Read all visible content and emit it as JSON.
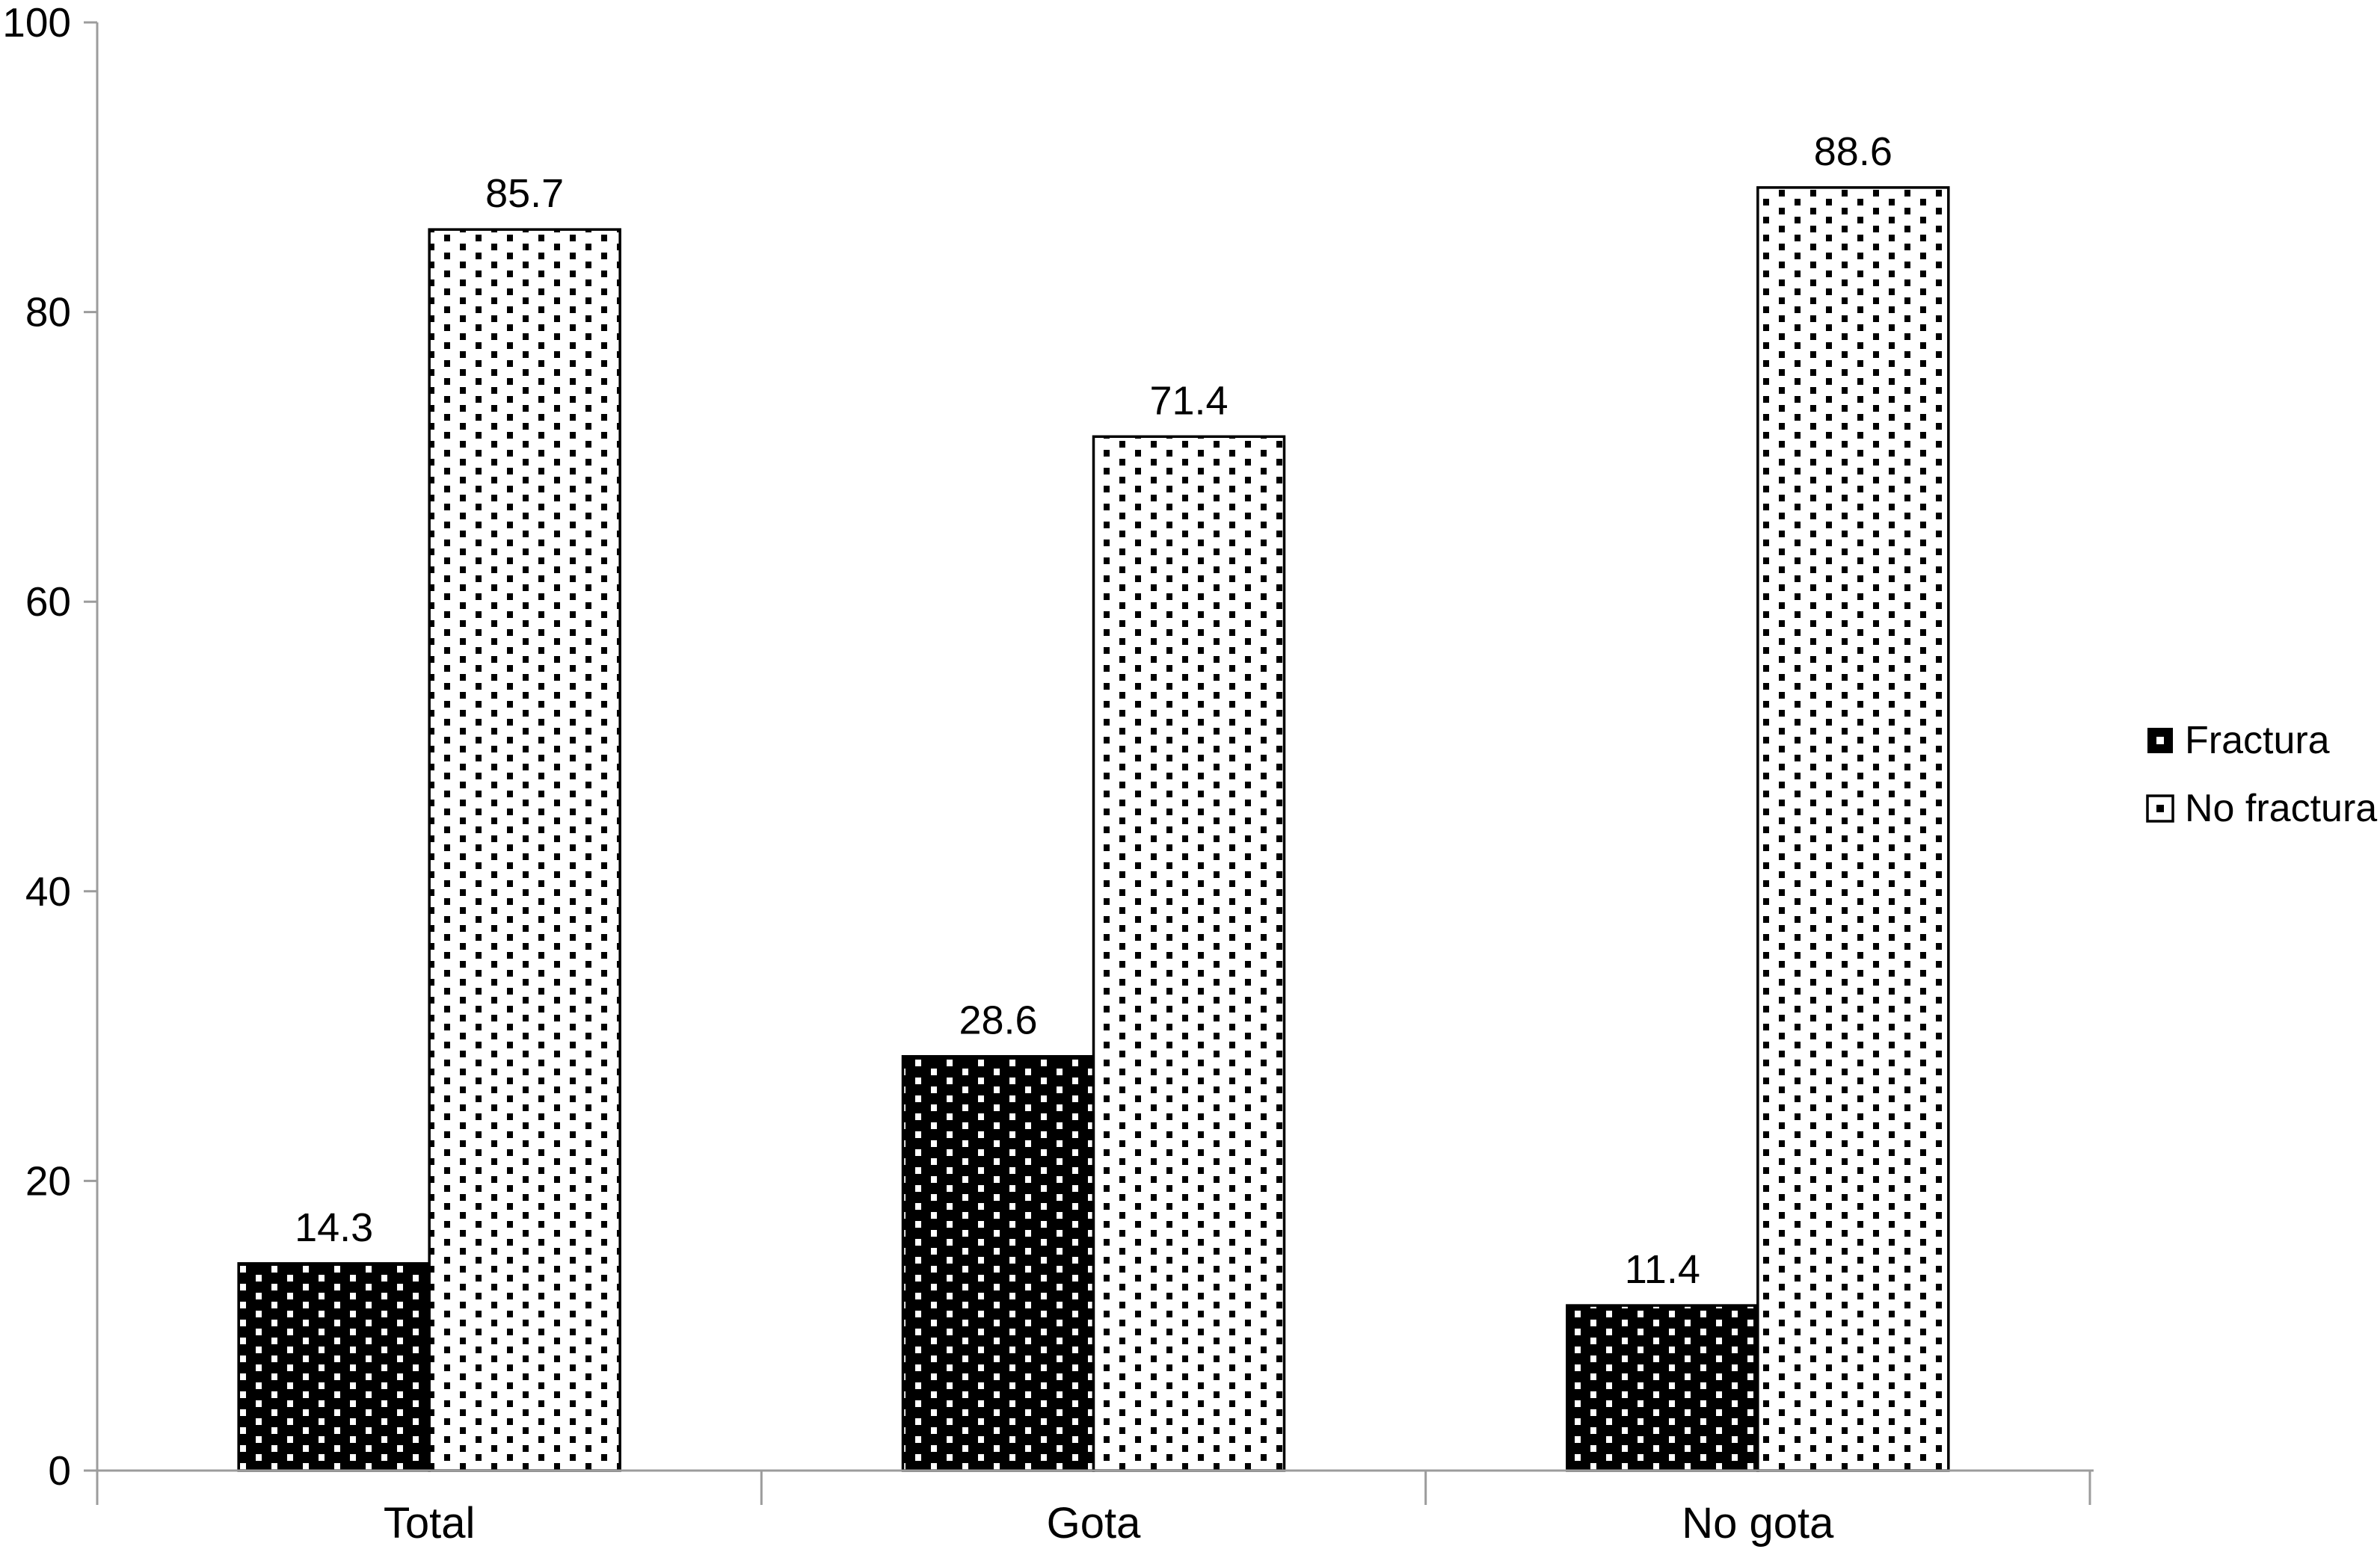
{
  "chart_data": {
    "type": "bar",
    "title": "",
    "categories": [
      "Total",
      "Gota",
      "No gota"
    ],
    "series": [
      {
        "name": "Fractura",
        "values": [
          14.3,
          28.6,
          11.4
        ],
        "labels": [
          "14.3",
          "28.6",
          "11.4"
        ],
        "style": "black-fill-white-dots"
      },
      {
        "name": "No fractura",
        "values": [
          85.7,
          71.4,
          88.6
        ],
        "labels": [
          "85.7",
          "71.4",
          "88.6"
        ],
        "style": "white-fill-black-dots"
      }
    ],
    "ylim": [
      0,
      100
    ],
    "yticks": [
      0,
      20,
      40,
      60,
      80,
      100
    ],
    "ytick_labels": [
      "0",
      "20",
      "40",
      "60",
      "80",
      "100"
    ],
    "xlabel": "",
    "ylabel": "",
    "grid": false,
    "legend_position": "right",
    "data_labels_shown": true
  },
  "legend": {
    "items": [
      {
        "label": "Fractura",
        "marker": "black-square-white-dot"
      },
      {
        "label": "No fractura",
        "marker": "white-square-black-dot"
      }
    ]
  },
  "colors": {
    "background": "#ffffff",
    "bar_black": "#000000",
    "bar_white": "#ffffff",
    "bar_border": "#000000",
    "axis": "#9c9c9c",
    "text": "#000000"
  }
}
